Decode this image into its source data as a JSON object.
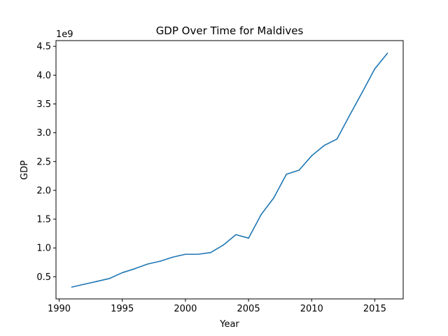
{
  "chart_data": {
    "type": "line",
    "title": "GDP Over Time for Maldives",
    "xlabel": "Year",
    "ylabel": "GDP",
    "y_multiplier_label": "1e9",
    "xlim": [
      1989.75,
      2017.25
    ],
    "ylim": [
      0.115,
      4.6
    ],
    "x_ticks": [
      1990,
      1995,
      2000,
      2005,
      2010,
      2015
    ],
    "x_tick_labels": [
      "1990",
      "1995",
      "2000",
      "2005",
      "2010",
      "2015"
    ],
    "y_ticks": [
      0.5,
      1.0,
      1.5,
      2.0,
      2.5,
      3.0,
      3.5,
      4.0,
      4.5
    ],
    "y_tick_labels": [
      "0.5",
      "1.0",
      "1.5",
      "2.0",
      "2.5",
      "3.0",
      "3.5",
      "4.0",
      "4.5"
    ],
    "grid": false,
    "color": "#1f77b4",
    "series": [
      {
        "x": [
          1991,
          1992,
          1993,
          1994,
          1995,
          1996,
          1997,
          1998,
          1999,
          2000,
          2001,
          2002,
          2003,
          2004,
          2005,
          2006,
          2007,
          2008,
          2009,
          2010,
          2011,
          2012,
          2013,
          2014,
          2015,
          2016
        ],
        "values": [
          0.32,
          0.37,
          0.42,
          0.47,
          0.57,
          0.64,
          0.72,
          0.77,
          0.84,
          0.89,
          0.89,
          0.92,
          1.05,
          1.23,
          1.17,
          1.58,
          1.87,
          2.28,
          2.35,
          2.6,
          2.78,
          2.89,
          3.3,
          3.7,
          4.11,
          4.38
        ]
      }
    ]
  }
}
